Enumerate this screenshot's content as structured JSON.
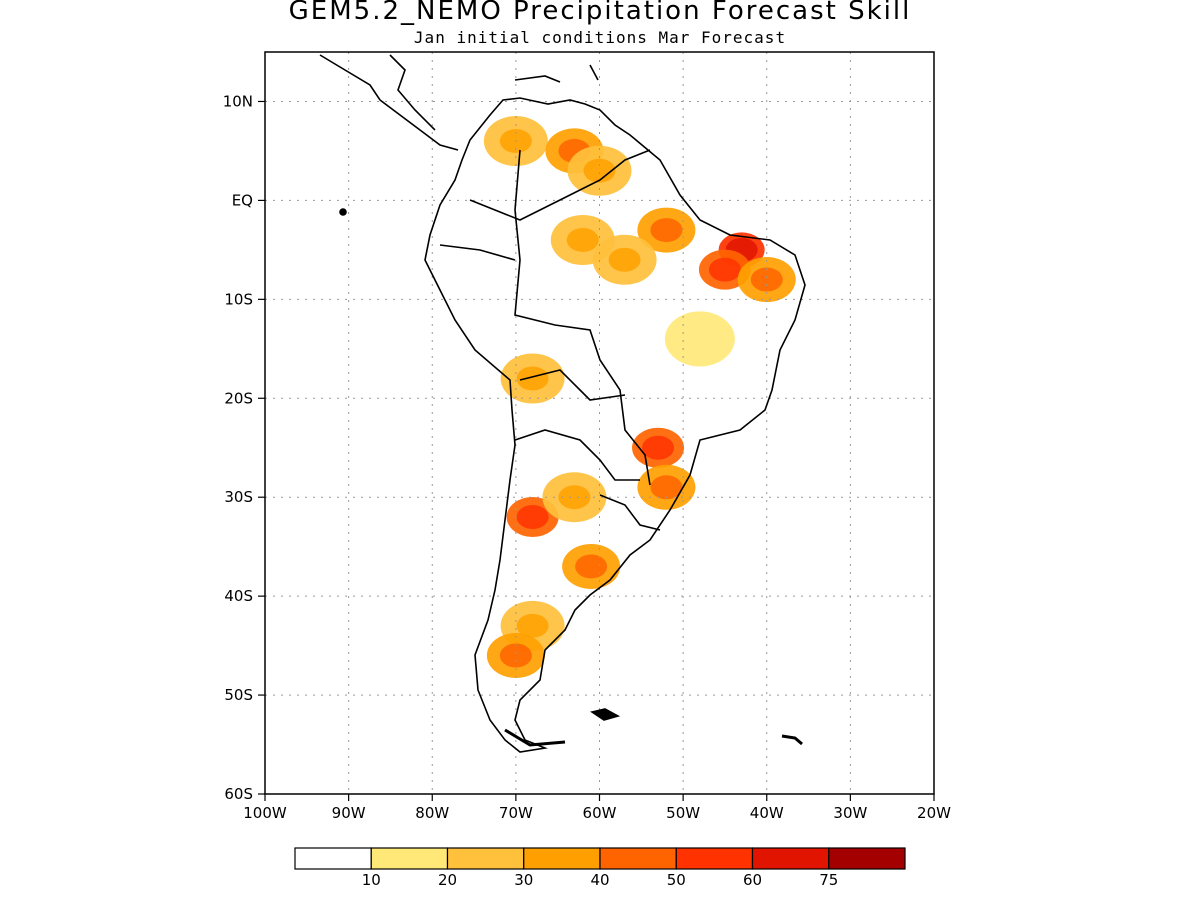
{
  "title": "GEM5.2_NEMO Precipitation Forecast Skill",
  "subtitle": "Jan initial conditions  Mar Forecast",
  "map": {
    "lon_range": [
      -100,
      -20
    ],
    "lat_range": [
      -60,
      15
    ],
    "lat_ticks": [
      {
        "value": 10,
        "label": "10N"
      },
      {
        "value": 0,
        "label": "EQ"
      },
      {
        "value": -10,
        "label": "10S"
      },
      {
        "value": -20,
        "label": "20S"
      },
      {
        "value": -30,
        "label": "30S"
      },
      {
        "value": -40,
        "label": "40S"
      },
      {
        "value": -50,
        "label": "50S"
      },
      {
        "value": -60,
        "label": "60S"
      }
    ],
    "lon_ticks": [
      {
        "value": -100,
        "label": "100W"
      },
      {
        "value": -90,
        "label": "90W"
      },
      {
        "value": -80,
        "label": "80W"
      },
      {
        "value": -70,
        "label": "70W"
      },
      {
        "value": -60,
        "label": "60W"
      },
      {
        "value": -50,
        "label": "50W"
      },
      {
        "value": -40,
        "label": "40W"
      },
      {
        "value": -30,
        "label": "30W"
      },
      {
        "value": -20,
        "label": "20W"
      }
    ],
    "gridlines": true,
    "coastline_color": "#000000"
  },
  "colorbar": {
    "colors": [
      "#ffffff",
      "#ffe878",
      "#ffc03c",
      "#ffa000",
      "#ff6400",
      "#ff3200",
      "#e11400",
      "#a50000"
    ],
    "labels": [
      "10",
      "20",
      "30",
      "40",
      "50",
      "60",
      "75"
    ]
  },
  "skill_regions": [
    {
      "lon": -70,
      "lat": 6,
      "level": 2
    },
    {
      "lon": -63,
      "lat": 5,
      "level": 3
    },
    {
      "lon": -60,
      "lat": 3,
      "level": 2
    },
    {
      "lon": -52,
      "lat": -3,
      "level": 3
    },
    {
      "lon": -43,
      "lat": -5,
      "level": 5
    },
    {
      "lon": -45,
      "lat": -7,
      "level": 4
    },
    {
      "lon": -40,
      "lat": -8,
      "level": 3
    },
    {
      "lon": -62,
      "lat": -4,
      "level": 2
    },
    {
      "lon": -57,
      "lat": -6,
      "level": 2
    },
    {
      "lon": -48,
      "lat": -14,
      "level": 1
    },
    {
      "lon": -68,
      "lat": -18,
      "level": 2
    },
    {
      "lon": -53,
      "lat": -25,
      "level": 4
    },
    {
      "lon": -52,
      "lat": -29,
      "level": 3
    },
    {
      "lon": -68,
      "lat": -32,
      "level": 4
    },
    {
      "lon": -63,
      "lat": -30,
      "level": 2
    },
    {
      "lon": -61,
      "lat": -37,
      "level": 3
    },
    {
      "lon": -68,
      "lat": -43,
      "level": 2
    },
    {
      "lon": -70,
      "lat": -46,
      "level": 3
    }
  ]
}
